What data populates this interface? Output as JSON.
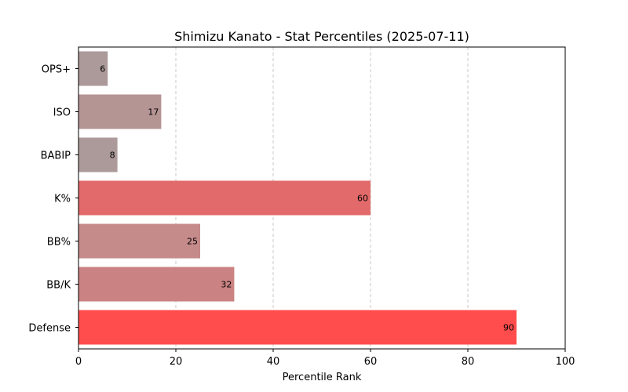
{
  "chart_data": {
    "type": "bar",
    "orientation": "horizontal",
    "title": "Shimizu Kanato - Stat Percentiles (2025-07-11)",
    "xlabel": "Percentile Rank",
    "ylabel": "",
    "xlim": [
      0,
      100
    ],
    "xticks": [
      0,
      20,
      40,
      60,
      80,
      100
    ],
    "grid": "x dashed",
    "categories": [
      "OPS+",
      "ISO",
      "BABIP",
      "K%",
      "BB%",
      "BB/K",
      "Defense"
    ],
    "values": [
      6,
      17,
      8,
      60,
      25,
      32,
      90
    ],
    "colors": [
      "#ac9999",
      "#b59494",
      "#ac9a9a",
      "#e36a6a",
      "#c58a8a",
      "#ca8282",
      "#ff4c4c"
    ]
  }
}
